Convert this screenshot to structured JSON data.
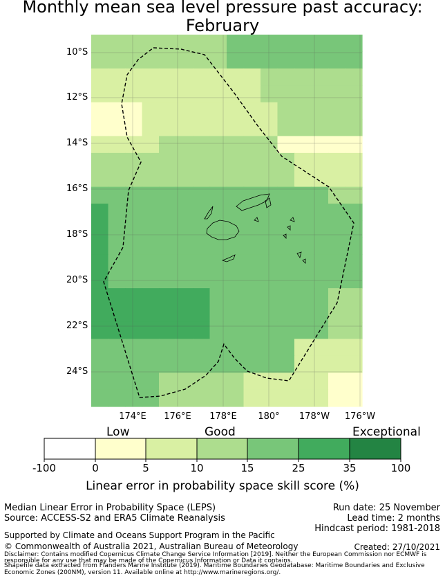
{
  "title": {
    "line1": "Monthly mean sea level pressure past accuracy:",
    "line2": "February"
  },
  "map": {
    "lat_labels": [
      "10°S",
      "12°S",
      "14°S",
      "16°S",
      "18°S",
      "20°S",
      "22°S",
      "24°S"
    ],
    "lon_labels": [
      "174°E",
      "176°E",
      "178°E",
      "180°",
      "178°W",
      "176°W"
    ],
    "colors": {
      "white": "#ffffff",
      "pale_yellow": "#ffffcc",
      "light_yellow_green": "#d9f0a3",
      "light_green": "#addd8e",
      "green": "#78c679",
      "mid_green": "#41ab5d",
      "dark_green": "#238443",
      "boundary": "#000000"
    }
  },
  "legend": {
    "categories": [
      "Low",
      "Good",
      "Exceptional"
    ],
    "ticks": [
      "-100",
      "0",
      "5",
      "10",
      "15",
      "25",
      "35",
      "100"
    ],
    "colors": [
      "#ffffff",
      "#ffffcc",
      "#d9f0a3",
      "#addd8e",
      "#78c679",
      "#41ab5d",
      "#238443"
    ],
    "title": "Linear error in probability space skill score (%)"
  },
  "info": {
    "metric": "Median Linear Error in Probability Space (LEPS)",
    "source": "Source: ACCESS-S2 and ERA5 Climate Reanalysis",
    "run_date": "Run date: 25 November",
    "lead_time": "Lead time: 2 months",
    "hindcast": "Hindcast period: 1981-2018",
    "supported": "Supported by Climate and Oceans Support Program in the Pacific",
    "copyright": "© Commonwealth of Australia 2021, Australian Bureau of Meteorology",
    "created": "Created: 27/10/2021",
    "disclaimer1": "Disclaimer: Contains modified Copernicus Climate Change Service Information [2019]. Neither the European Commission nor ECMWF is",
    "disclaimer2": "responsible for any use that may be made of the Copernicus Information or Data it contains.",
    "shapefile1": "Shapefile data extracted from Flanders Marine Institute (2019). Maritime Boundaries Geodatabase: Maritime Boundaries and Exclusive",
    "shapefile2": "Economic Zones (200NM), version 11. Available online at http://www.marineregions.org/."
  }
}
